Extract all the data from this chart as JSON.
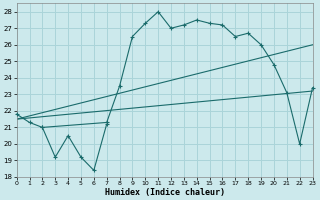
{
  "xlabel": "Humidex (Indice chaleur)",
  "background_color": "#cce9ec",
  "grid_color": "#aad4d9",
  "line_color": "#1a6b6b",
  "xlim": [
    0,
    23
  ],
  "ylim": [
    18,
    28.5
  ],
  "xticks": [
    0,
    1,
    2,
    3,
    4,
    5,
    6,
    7,
    8,
    9,
    10,
    11,
    12,
    13,
    14,
    15,
    16,
    17,
    18,
    19,
    20,
    21,
    22,
    23
  ],
  "yticks": [
    18,
    19,
    20,
    21,
    22,
    23,
    24,
    25,
    26,
    27,
    28
  ],
  "series_low": {
    "x": [
      0,
      1,
      2,
      3,
      4,
      5,
      6,
      7
    ],
    "y": [
      21.8,
      21.3,
      21.0,
      19.2,
      20.5,
      19.2,
      18.4,
      21.2
    ]
  },
  "series_main": {
    "x": [
      2,
      7,
      8,
      9,
      10,
      11,
      12,
      13,
      14,
      15,
      16,
      17,
      18,
      19,
      20,
      21,
      22,
      23
    ],
    "y": [
      21.0,
      21.3,
      23.5,
      26.5,
      27.3,
      28.0,
      27.0,
      27.2,
      27.5,
      27.3,
      27.2,
      26.5,
      26.7,
      26.0,
      24.8,
      23.1,
      20.0,
      23.4
    ]
  },
  "diag_low": {
    "x": [
      0,
      23
    ],
    "y": [
      21.5,
      23.2
    ]
  },
  "diag_high": {
    "x": [
      0,
      23
    ],
    "y": [
      21.5,
      26.0
    ]
  }
}
